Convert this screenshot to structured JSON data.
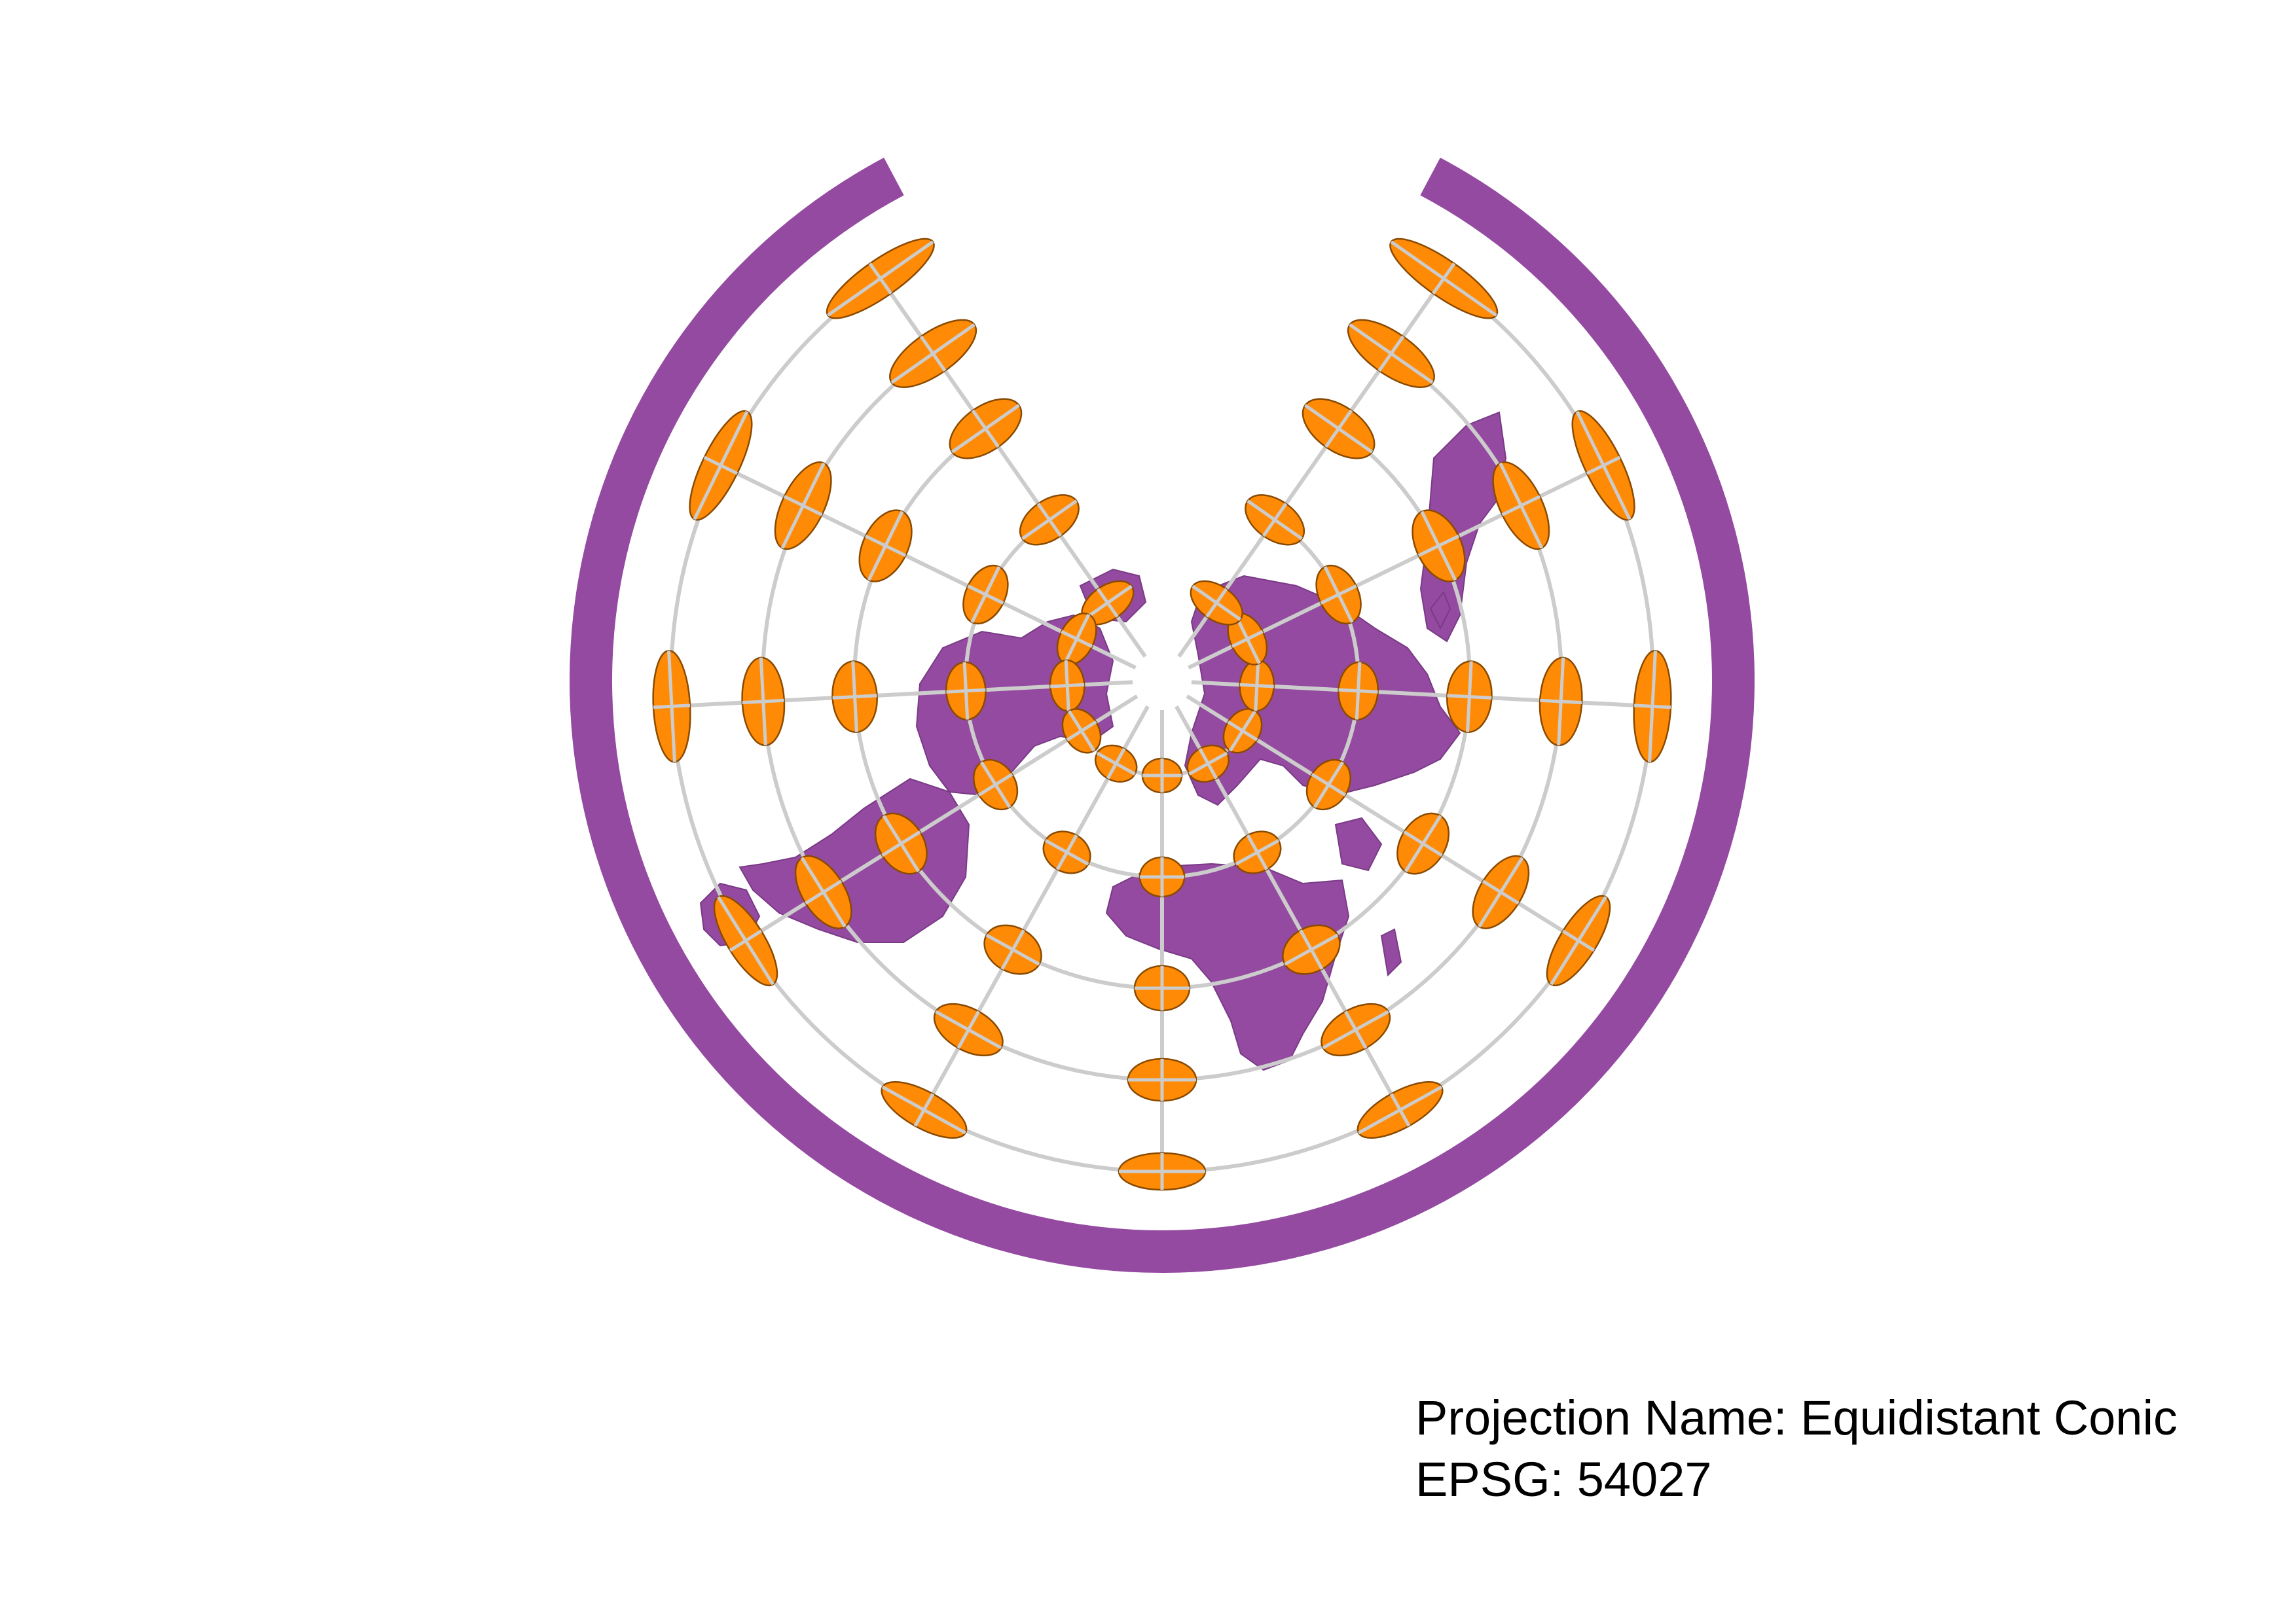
{
  "map": {
    "projection_name_label": "Projection Name: Equidistant Conic",
    "epsg_label": "EPSG: 54027",
    "colors": {
      "land": "#934aa0",
      "land_border": "#7a3a86",
      "indicatrix_fill": "#ff8a05",
      "indicatrix_stroke": "#8a4a00",
      "graticule": "#cccccc",
      "background": "#ffffff"
    },
    "layers": [
      "land",
      "graticule",
      "tissot-indicatrices",
      "caption"
    ],
    "indicatrix_rings": 5,
    "indicatrices_per_ring": 11
  }
}
